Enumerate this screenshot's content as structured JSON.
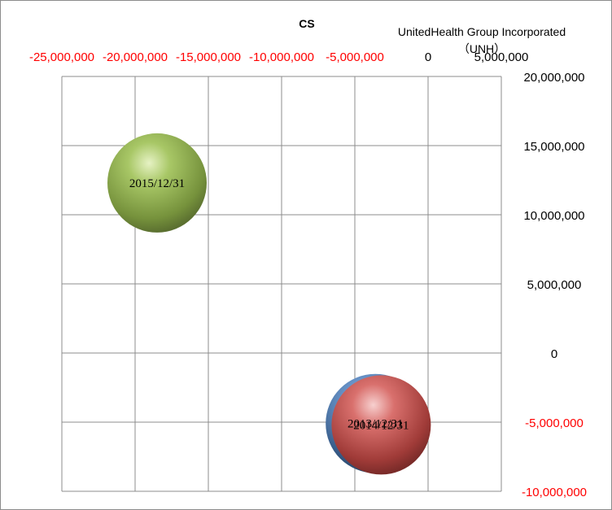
{
  "chart_data": {
    "type": "bubble",
    "title": "CS",
    "corner_label": [
      "UnitedHealth Group Incorporated",
      "（UNH）"
    ],
    "xlim": [
      -25000000,
      5000000
    ],
    "ylim": [
      -10000000,
      20000000
    ],
    "x_ticks": [
      {
        "value": -25000000,
        "label": "-25,000,000"
      },
      {
        "value": -20000000,
        "label": "-20,000,000"
      },
      {
        "value": -15000000,
        "label": "-15,000,000"
      },
      {
        "value": -10000000,
        "label": "-10,000,000"
      },
      {
        "value": -5000000,
        "label": "-5,000,000"
      },
      {
        "value": 0,
        "label": "0"
      },
      {
        "value": 5000000,
        "label": "5,000,000"
      }
    ],
    "y_ticks": [
      {
        "value": 20000000,
        "label": "20,000,000"
      },
      {
        "value": 15000000,
        "label": "15,000,000"
      },
      {
        "value": 10000000,
        "label": "10,000,000"
      },
      {
        "value": 5000000,
        "label": "5,000,000"
      },
      {
        "value": 0,
        "label": "0"
      },
      {
        "value": -5000000,
        "label": "-5,000,000"
      },
      {
        "value": -10000000,
        "label": "-10,000,000"
      }
    ],
    "negative_color": "#ff0000",
    "positive_color": "#000000",
    "grid": true,
    "series": [
      {
        "label": "2013/12/31",
        "x": -3600000,
        "y": -5100000,
        "color": "#4f81bd"
      },
      {
        "label": "2014/12/31",
        "x": -3200000,
        "y": -5200000,
        "color": "#c0504d"
      },
      {
        "label": "2015/12/31",
        "x": -18500000,
        "y": 12300000,
        "color": "#9bbb59"
      }
    ],
    "bubble_size": 1
  }
}
